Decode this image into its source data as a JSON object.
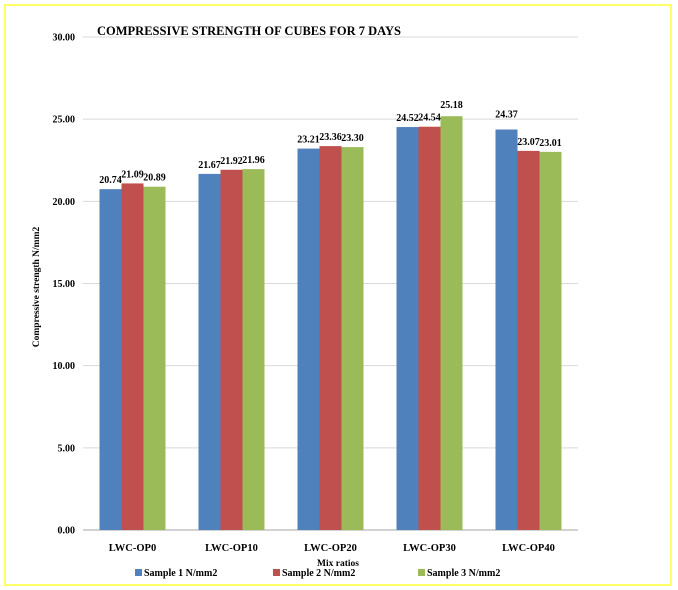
{
  "chart_data": {
    "type": "bar",
    "title": "COMPRESSIVE STRENGTH OF CUBES FOR 7 DAYS",
    "xlabel": "Mix ratios",
    "ylabel": "Compressive strength N/mm2",
    "ylim": [
      0,
      30
    ],
    "yticks": [
      "0.00",
      "5.00",
      "10.00",
      "15.00",
      "20.00",
      "25.00",
      "30.00"
    ],
    "ytick_values": [
      0,
      5,
      10,
      15,
      20,
      25,
      30
    ],
    "grid": true,
    "legend_position": "bottom",
    "categories": [
      "LWC-OP0",
      "LWC-OP10",
      "LWC-OP20",
      "LWC-OP30",
      "LWC-OP40"
    ],
    "series": [
      {
        "name": "Sample 1 N/mm2",
        "color": "#4f81bd",
        "values": [
          20.74,
          21.67,
          23.21,
          24.52,
          24.37
        ],
        "labels": [
          "20.74",
          "21.67",
          "23.21",
          "24.52",
          "24.37"
        ]
      },
      {
        "name": "Sample 2 N/mm2",
        "color": "#c0504d",
        "values": [
          21.09,
          21.92,
          23.36,
          24.54,
          23.07
        ],
        "labels": [
          "21.09",
          "21.92",
          "23.36",
          "24.54",
          "23.07"
        ]
      },
      {
        "name": "Sample 3 N/mm2",
        "color": "#9bbb59",
        "values": [
          20.89,
          21.96,
          23.3,
          25.18,
          23.01
        ],
        "labels": [
          "20.89",
          "21.96",
          "23.30",
          "25.18",
          "23.01"
        ]
      }
    ]
  }
}
